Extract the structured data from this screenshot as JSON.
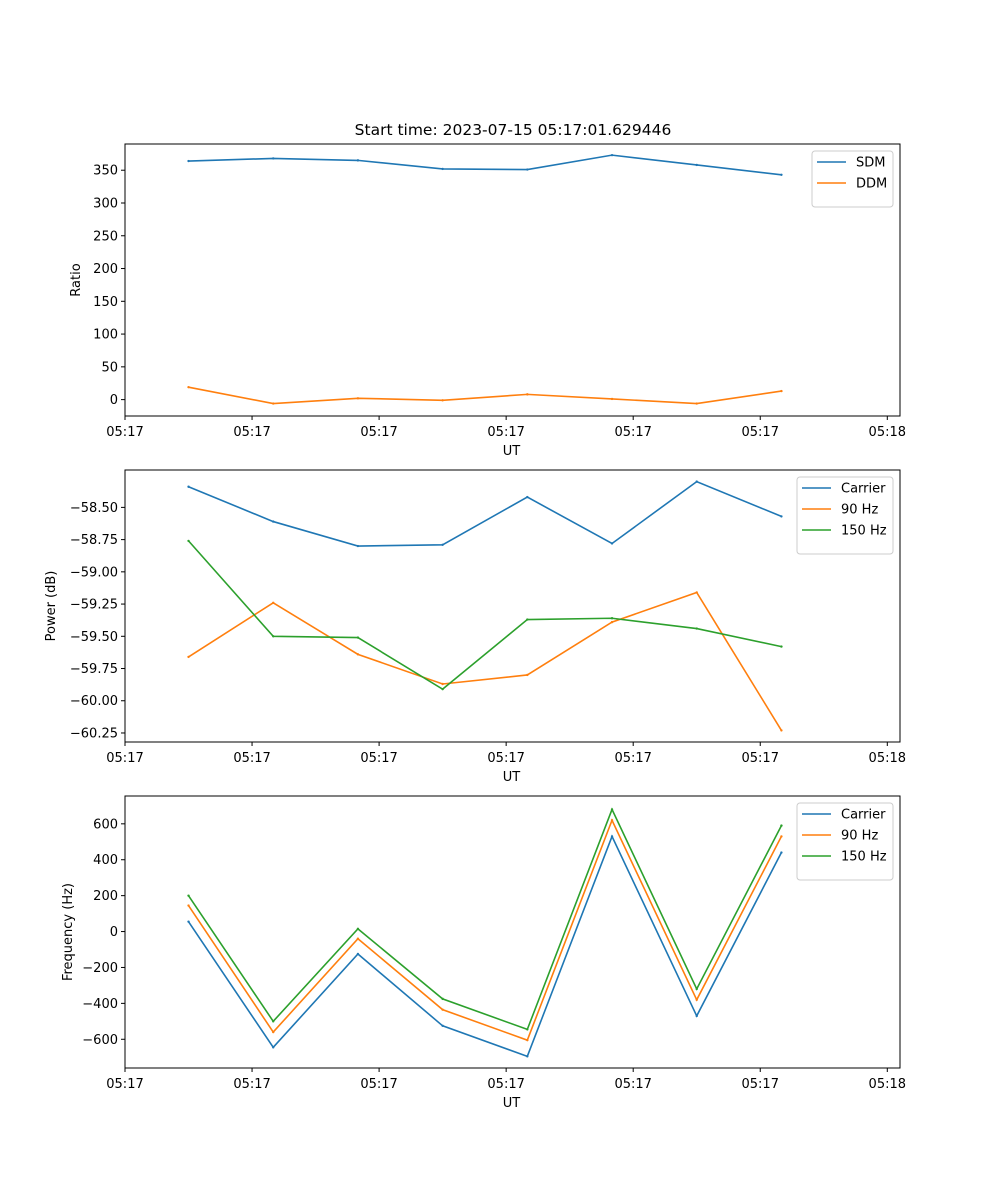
{
  "figure": {
    "title": "Start time: 2023-07-15 05:17:01.629446"
  },
  "chart_data": [
    {
      "type": "line",
      "title": "Start time: 2023-07-15 05:17:01.629446",
      "xlabel": "UT",
      "ylabel": "Ratio",
      "x": [
        0,
        1,
        2,
        3,
        4,
        5,
        6,
        7
      ],
      "xlim": [
        -0.75,
        8.4
      ],
      "xticks": [
        -0.75,
        0.75,
        2.25,
        3.75,
        5.25,
        6.75,
        8.25
      ],
      "xtick_labels": [
        "05:17",
        "05:17",
        "05:17",
        "05:17",
        "05:17",
        "05:17",
        "05:17"
      ],
      "xtick_last_label": "05:18",
      "ylim": [
        -25,
        390
      ],
      "yticks": [
        0,
        50,
        100,
        150,
        200,
        250,
        300,
        350
      ],
      "ytick_labels": [
        "0",
        "50",
        "100",
        "150",
        "200",
        "250",
        "300",
        "350"
      ],
      "legend": "top-right",
      "series": [
        {
          "name": "SDM",
          "color": "#1f77b4",
          "values": [
            364,
            368,
            365,
            352,
            351,
            373,
            358,
            343
          ]
        },
        {
          "name": "DDM",
          "color": "#ff7f0e",
          "values": [
            19,
            -6,
            2,
            -1,
            8,
            1,
            -6,
            13
          ]
        }
      ]
    },
    {
      "type": "line",
      "title": "",
      "xlabel": "UT",
      "ylabel": "Power (dB)",
      "x": [
        0,
        1,
        2,
        3,
        4,
        5,
        6,
        7
      ],
      "xlim": [
        -0.75,
        8.4
      ],
      "xticks": [
        -0.75,
        0.75,
        2.25,
        3.75,
        5.25,
        6.75,
        8.25
      ],
      "xtick_labels": [
        "05:17",
        "05:17",
        "05:17",
        "05:17",
        "05:17",
        "05:17",
        "05:17"
      ],
      "xtick_last_label": "05:18",
      "ylim": [
        -60.32,
        -58.21
      ],
      "yticks": [
        -60.25,
        -60.0,
        -59.75,
        -59.5,
        -59.25,
        -59.0,
        -58.75,
        -58.5
      ],
      "ytick_labels": [
        "−60.25",
        "−60.00",
        "−59.75",
        "−59.50",
        "−59.25",
        "−59.00",
        "−58.75",
        "−58.50"
      ],
      "legend": "top-right",
      "series": [
        {
          "name": "Carrier",
          "color": "#1f77b4",
          "values": [
            -58.34,
            -58.61,
            -58.8,
            -58.79,
            -58.42,
            -58.78,
            -58.3,
            -58.57
          ]
        },
        {
          "name": "90 Hz",
          "color": "#ff7f0e",
          "values": [
            -59.66,
            -59.24,
            -59.64,
            -59.87,
            -59.8,
            -59.39,
            -59.16,
            -60.23
          ]
        },
        {
          "name": "150 Hz",
          "color": "#2ca02c",
          "values": [
            -58.76,
            -59.5,
            -59.51,
            -59.91,
            -59.37,
            -59.36,
            -59.44,
            -59.58
          ]
        }
      ]
    },
    {
      "type": "line",
      "title": "",
      "xlabel": "UT",
      "ylabel": "Frequency (Hz)",
      "x": [
        0,
        1,
        2,
        3,
        4,
        5,
        6,
        7
      ],
      "xlim": [
        -0.75,
        8.4
      ],
      "xticks": [
        -0.75,
        0.75,
        2.25,
        3.75,
        5.25,
        6.75,
        8.25
      ],
      "xtick_labels": [
        "05:17",
        "05:17",
        "05:17",
        "05:17",
        "05:17",
        "05:17",
        "05:17"
      ],
      "xtick_last_label": "05:18",
      "ylim": [
        -760,
        755
      ],
      "yticks": [
        -600,
        -400,
        -200,
        0,
        200,
        400,
        600
      ],
      "ytick_labels": [
        "−600",
        "−400",
        "−200",
        "0",
        "200",
        "400",
        "600"
      ],
      "legend": "top-right",
      "series": [
        {
          "name": "Carrier",
          "color": "#1f77b4",
          "values": [
            55,
            -645,
            -125,
            -525,
            -695,
            530,
            -470,
            440
          ]
        },
        {
          "name": "90 Hz",
          "color": "#ff7f0e",
          "values": [
            145,
            -560,
            -40,
            -435,
            -605,
            620,
            -380,
            530
          ]
        },
        {
          "name": "150 Hz",
          "color": "#2ca02c",
          "values": [
            200,
            -500,
            15,
            -375,
            -545,
            680,
            -320,
            590
          ]
        }
      ]
    }
  ]
}
